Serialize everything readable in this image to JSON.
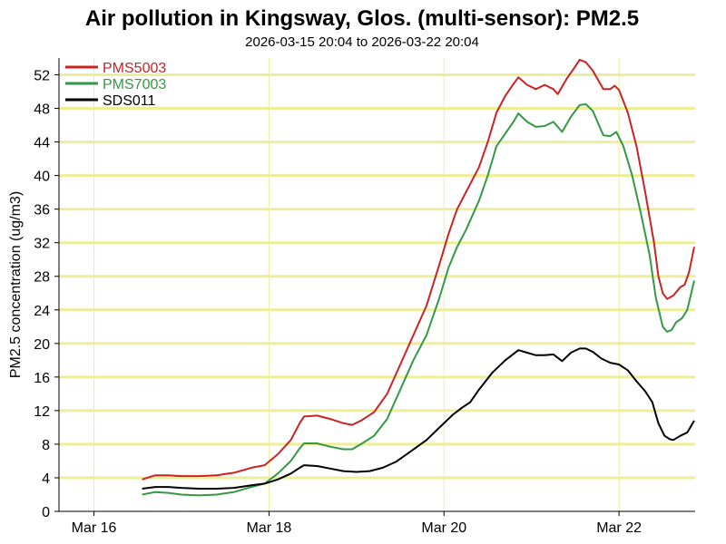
{
  "chart_data": {
    "type": "line",
    "title": "Air pollution in Kingsway, Glos. (multi-sensor): PM2.5",
    "subtitle": "2026-03-15 20:04 to 2026-03-22 20:04",
    "ylabel": "PM2.5 concentration (ug/m3)",
    "xlabel": "",
    "xlim": [
      15.6,
      22.87
    ],
    "ylim": [
      0,
      54
    ],
    "yticks": [
      0,
      4,
      8,
      12,
      16,
      20,
      24,
      28,
      32,
      36,
      40,
      44,
      48,
      52
    ],
    "xticks": [
      {
        "value": 16,
        "label": "Mar 16"
      },
      {
        "value": 18,
        "label": "Mar 18"
      },
      {
        "value": 20,
        "label": "Mar 20"
      },
      {
        "value": 22,
        "label": "Mar 22"
      }
    ],
    "grid": true,
    "legend_position": "top-left",
    "series": [
      {
        "name": "PMS5003",
        "color": "#cc2222",
        "points": [
          [
            16.55,
            3.8
          ],
          [
            16.7,
            4.3
          ],
          [
            16.85,
            4.3
          ],
          [
            17.0,
            4.2
          ],
          [
            17.2,
            4.2
          ],
          [
            17.4,
            4.3
          ],
          [
            17.6,
            4.6
          ],
          [
            17.8,
            5.2
          ],
          [
            17.95,
            5.5
          ],
          [
            18.1,
            6.8
          ],
          [
            18.25,
            8.5
          ],
          [
            18.35,
            10.5
          ],
          [
            18.4,
            11.3
          ],
          [
            18.55,
            11.4
          ],
          [
            18.7,
            11.0
          ],
          [
            18.85,
            10.5
          ],
          [
            18.95,
            10.3
          ],
          [
            19.05,
            10.8
          ],
          [
            19.2,
            11.8
          ],
          [
            19.35,
            14.0
          ],
          [
            19.5,
            17.5
          ],
          [
            19.65,
            21.0
          ],
          [
            19.8,
            24.5
          ],
          [
            19.95,
            29.5
          ],
          [
            20.05,
            33.0
          ],
          [
            20.15,
            36.0
          ],
          [
            20.25,
            38.0
          ],
          [
            20.4,
            41.0
          ],
          [
            20.5,
            44.0
          ],
          [
            20.6,
            47.5
          ],
          [
            20.7,
            49.5
          ],
          [
            20.8,
            51.0
          ],
          [
            20.85,
            51.7
          ],
          [
            20.95,
            50.8
          ],
          [
            21.05,
            50.3
          ],
          [
            21.15,
            50.8
          ],
          [
            21.25,
            50.3
          ],
          [
            21.3,
            49.7
          ],
          [
            21.4,
            51.5
          ],
          [
            21.5,
            53.0
          ],
          [
            21.55,
            53.8
          ],
          [
            21.62,
            53.5
          ],
          [
            21.7,
            52.5
          ],
          [
            21.82,
            50.3
          ],
          [
            21.9,
            50.3
          ],
          [
            21.95,
            50.7
          ],
          [
            22.0,
            50.2
          ],
          [
            22.1,
            47.5
          ],
          [
            22.2,
            43.5
          ],
          [
            22.3,
            38.0
          ],
          [
            22.4,
            32.0
          ],
          [
            22.45,
            28.0
          ],
          [
            22.5,
            26.0
          ],
          [
            22.55,
            25.3
          ],
          [
            22.62,
            25.7
          ],
          [
            22.7,
            26.7
          ],
          [
            22.75,
            27.0
          ],
          [
            22.8,
            28.5
          ],
          [
            22.86,
            31.5
          ]
        ]
      },
      {
        "name": "PMS7003",
        "color": "#339944",
        "points": [
          [
            16.55,
            2.0
          ],
          [
            16.7,
            2.3
          ],
          [
            16.85,
            2.2
          ],
          [
            17.0,
            2.0
          ],
          [
            17.2,
            1.9
          ],
          [
            17.4,
            2.0
          ],
          [
            17.6,
            2.3
          ],
          [
            17.8,
            2.9
          ],
          [
            17.95,
            3.3
          ],
          [
            18.1,
            4.5
          ],
          [
            18.25,
            6.0
          ],
          [
            18.35,
            7.5
          ],
          [
            18.4,
            8.1
          ],
          [
            18.55,
            8.1
          ],
          [
            18.7,
            7.7
          ],
          [
            18.85,
            7.4
          ],
          [
            18.95,
            7.4
          ],
          [
            19.05,
            8.0
          ],
          [
            19.2,
            9.0
          ],
          [
            19.35,
            11.0
          ],
          [
            19.5,
            14.5
          ],
          [
            19.65,
            18.0
          ],
          [
            19.8,
            21.0
          ],
          [
            19.95,
            25.5
          ],
          [
            20.05,
            29.0
          ],
          [
            20.15,
            31.5
          ],
          [
            20.25,
            33.5
          ],
          [
            20.4,
            37.0
          ],
          [
            20.5,
            40.0
          ],
          [
            20.6,
            43.5
          ],
          [
            20.7,
            45.0
          ],
          [
            20.8,
            46.5
          ],
          [
            20.85,
            47.4
          ],
          [
            20.95,
            46.4
          ],
          [
            21.05,
            45.8
          ],
          [
            21.15,
            45.9
          ],
          [
            21.25,
            46.4
          ],
          [
            21.35,
            45.2
          ],
          [
            21.45,
            47.0
          ],
          [
            21.55,
            48.4
          ],
          [
            21.62,
            48.5
          ],
          [
            21.7,
            47.7
          ],
          [
            21.82,
            44.8
          ],
          [
            21.9,
            44.7
          ],
          [
            21.97,
            45.2
          ],
          [
            22.05,
            43.5
          ],
          [
            22.15,
            40.0
          ],
          [
            22.25,
            35.5
          ],
          [
            22.35,
            30.5
          ],
          [
            22.42,
            25.5
          ],
          [
            22.5,
            22.0
          ],
          [
            22.55,
            21.4
          ],
          [
            22.6,
            21.6
          ],
          [
            22.65,
            22.5
          ],
          [
            22.72,
            23.0
          ],
          [
            22.78,
            24.0
          ],
          [
            22.86,
            27.5
          ]
        ]
      },
      {
        "name": "SDS011",
        "color": "#000000",
        "points": [
          [
            16.55,
            2.7
          ],
          [
            16.7,
            2.9
          ],
          [
            16.85,
            2.9
          ],
          [
            17.0,
            2.8
          ],
          [
            17.2,
            2.7
          ],
          [
            17.4,
            2.7
          ],
          [
            17.6,
            2.8
          ],
          [
            17.8,
            3.1
          ],
          [
            17.95,
            3.3
          ],
          [
            18.1,
            3.8
          ],
          [
            18.25,
            4.5
          ],
          [
            18.35,
            5.2
          ],
          [
            18.4,
            5.5
          ],
          [
            18.55,
            5.4
          ],
          [
            18.7,
            5.1
          ],
          [
            18.85,
            4.8
          ],
          [
            19.0,
            4.7
          ],
          [
            19.15,
            4.8
          ],
          [
            19.3,
            5.2
          ],
          [
            19.45,
            5.9
          ],
          [
            19.6,
            7.0
          ],
          [
            19.8,
            8.5
          ],
          [
            19.95,
            10.0
          ],
          [
            20.1,
            11.5
          ],
          [
            20.2,
            12.3
          ],
          [
            20.3,
            13.0
          ],
          [
            20.4,
            14.5
          ],
          [
            20.55,
            16.5
          ],
          [
            20.7,
            18.0
          ],
          [
            20.8,
            18.8
          ],
          [
            20.85,
            19.2
          ],
          [
            20.95,
            18.9
          ],
          [
            21.05,
            18.6
          ],
          [
            21.15,
            18.6
          ],
          [
            21.25,
            18.7
          ],
          [
            21.35,
            17.9
          ],
          [
            21.45,
            18.9
          ],
          [
            21.55,
            19.4
          ],
          [
            21.62,
            19.4
          ],
          [
            21.7,
            19.0
          ],
          [
            21.8,
            18.2
          ],
          [
            21.9,
            17.7
          ],
          [
            22.0,
            17.5
          ],
          [
            22.1,
            16.8
          ],
          [
            22.2,
            15.5
          ],
          [
            22.3,
            14.3
          ],
          [
            22.38,
            13.0
          ],
          [
            22.45,
            10.5
          ],
          [
            22.52,
            9.0
          ],
          [
            22.58,
            8.6
          ],
          [
            22.62,
            8.5
          ],
          [
            22.7,
            9.0
          ],
          [
            22.78,
            9.4
          ],
          [
            22.86,
            10.8
          ]
        ]
      }
    ]
  }
}
